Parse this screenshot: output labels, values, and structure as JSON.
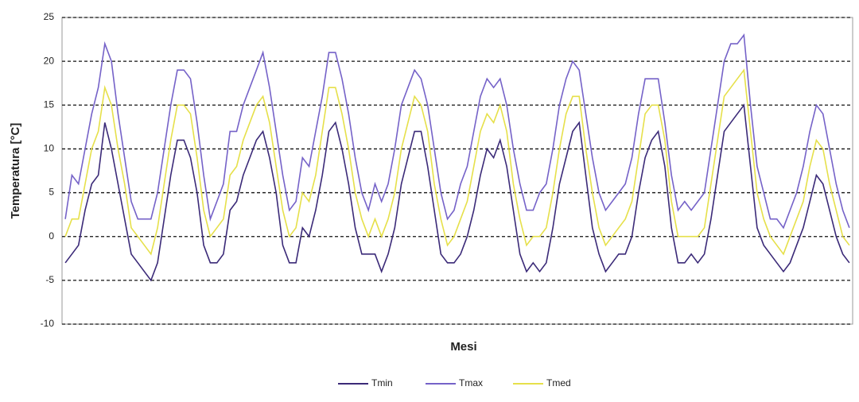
{
  "chart_data": {
    "type": "line",
    "y_label": "Temperatura [°C]",
    "x_label": "Mesi",
    "categories": [
      null,
      null,
      null,
      null,
      null,
      null,
      null,
      null,
      null,
      null,
      null,
      null,
      null,
      null,
      null,
      null,
      null,
      null,
      null,
      null,
      null,
      null,
      null,
      null,
      null,
      null,
      null,
      null,
      null,
      null,
      null,
      null,
      null,
      null,
      null,
      null,
      null,
      null,
      null,
      null,
      null,
      null,
      null,
      null,
      null,
      null,
      null,
      null,
      null,
      null,
      null,
      null,
      null,
      null,
      null,
      null,
      null,
      null,
      null,
      null,
      null,
      null,
      null,
      null,
      null,
      null,
      null,
      null,
      null,
      null,
      null,
      null,
      null,
      null,
      null,
      null,
      null,
      null,
      null,
      null,
      null,
      null,
      null,
      null,
      null,
      null,
      null,
      null,
      null,
      null,
      null,
      null,
      null,
      null,
      null,
      null,
      null,
      null,
      null,
      null,
      null,
      null,
      null,
      null,
      null,
      null,
      null,
      null,
      null,
      null,
      null,
      null,
      null,
      null,
      null,
      null,
      null,
      null,
      null,
      null
    ],
    "series": [
      {
        "name": "Tmin",
        "color": "#3b2a78",
        "values": [
          -3,
          -2,
          -1,
          3,
          6,
          7,
          13,
          10,
          6,
          2,
          -2,
          -3,
          -4,
          -5,
          -3,
          2,
          7,
          11,
          11,
          9,
          5,
          -1,
          -3,
          -3,
          -2,
          3,
          4,
          7,
          9,
          11,
          12,
          9,
          5,
          -1,
          -3,
          -3,
          1,
          0,
          3,
          7,
          12,
          13,
          10,
          6,
          1,
          -2,
          -2,
          -2,
          -4,
          -2,
          1,
          6,
          9,
          12,
          12,
          8,
          3,
          -2,
          -3,
          -3,
          -2,
          0,
          3,
          7,
          10,
          9,
          11,
          8,
          3,
          -2,
          -4,
          -3,
          -4,
          -3,
          1,
          6,
          9,
          12,
          13,
          7,
          1,
          -2,
          -4,
          -3,
          -2,
          -2,
          0,
          5,
          9,
          11,
          12,
          8,
          1,
          -3,
          -3,
          -2,
          -3,
          -2,
          2,
          7,
          12,
          13,
          14,
          15,
          8,
          1,
          -1,
          -2,
          -3,
          -4,
          -3,
          -1,
          1,
          4,
          7,
          6,
          3,
          0,
          -2,
          -3
        ]
      },
      {
        "name": "Tmax",
        "color": "#7562c8",
        "values": [
          2,
          7,
          6,
          10,
          14,
          17,
          22,
          20,
          14,
          9,
          4,
          2,
          2,
          2,
          5,
          10,
          15,
          19,
          19,
          18,
          13,
          7,
          2,
          4,
          6,
          12,
          12,
          15,
          17,
          19,
          21,
          17,
          12,
          7,
          3,
          4,
          9,
          8,
          12,
          16,
          21,
          21,
          18,
          14,
          9,
          5,
          3,
          6,
          4,
          6,
          10,
          15,
          17,
          19,
          18,
          15,
          10,
          5,
          2,
          3,
          6,
          8,
          12,
          16,
          18,
          17,
          18,
          15,
          10,
          6,
          3,
          3,
          5,
          6,
          10,
          15,
          18,
          20,
          19,
          14,
          9,
          5,
          3,
          4,
          5,
          6,
          9,
          14,
          18,
          18,
          18,
          13,
          7,
          3,
          4,
          3,
          4,
          5,
          10,
          15,
          20,
          22,
          22,
          23,
          15,
          8,
          5,
          2,
          2,
          1,
          3,
          5,
          8,
          12,
          15,
          14,
          10,
          6,
          3,
          1
        ]
      },
      {
        "name": "Tmed",
        "color": "#e6e04a",
        "values": [
          0,
          2,
          2,
          6,
          10,
          12,
          17,
          15,
          10,
          6,
          1,
          0,
          -1,
          -2,
          1,
          6,
          11,
          15,
          15,
          14,
          9,
          3,
          0,
          1,
          2,
          7,
          8,
          11,
          13,
          15,
          16,
          13,
          8,
          3,
          0,
          1,
          5,
          4,
          7,
          12,
          17,
          17,
          14,
          10,
          5,
          2,
          0,
          2,
          0,
          2,
          5,
          10,
          13,
          16,
          15,
          12,
          6,
          2,
          -1,
          0,
          2,
          4,
          8,
          12,
          14,
          13,
          15,
          12,
          6,
          2,
          -1,
          0,
          0,
          1,
          5,
          10,
          14,
          16,
          16,
          10,
          5,
          1,
          -1,
          0,
          1,
          2,
          4,
          9,
          14,
          15,
          15,
          11,
          4,
          0,
          0,
          0,
          0,
          1,
          6,
          11,
          16,
          17,
          18,
          19,
          12,
          5,
          2,
          0,
          -1,
          -2,
          0,
          2,
          4,
          8,
          11,
          10,
          6,
          3,
          0,
          -1
        ]
      }
    ],
    "ylim": [
      -10,
      25
    ],
    "yticks": [
      -10,
      -5,
      0,
      5,
      10,
      15,
      20,
      25
    ],
    "grid": true,
    "legend": "bottom"
  }
}
